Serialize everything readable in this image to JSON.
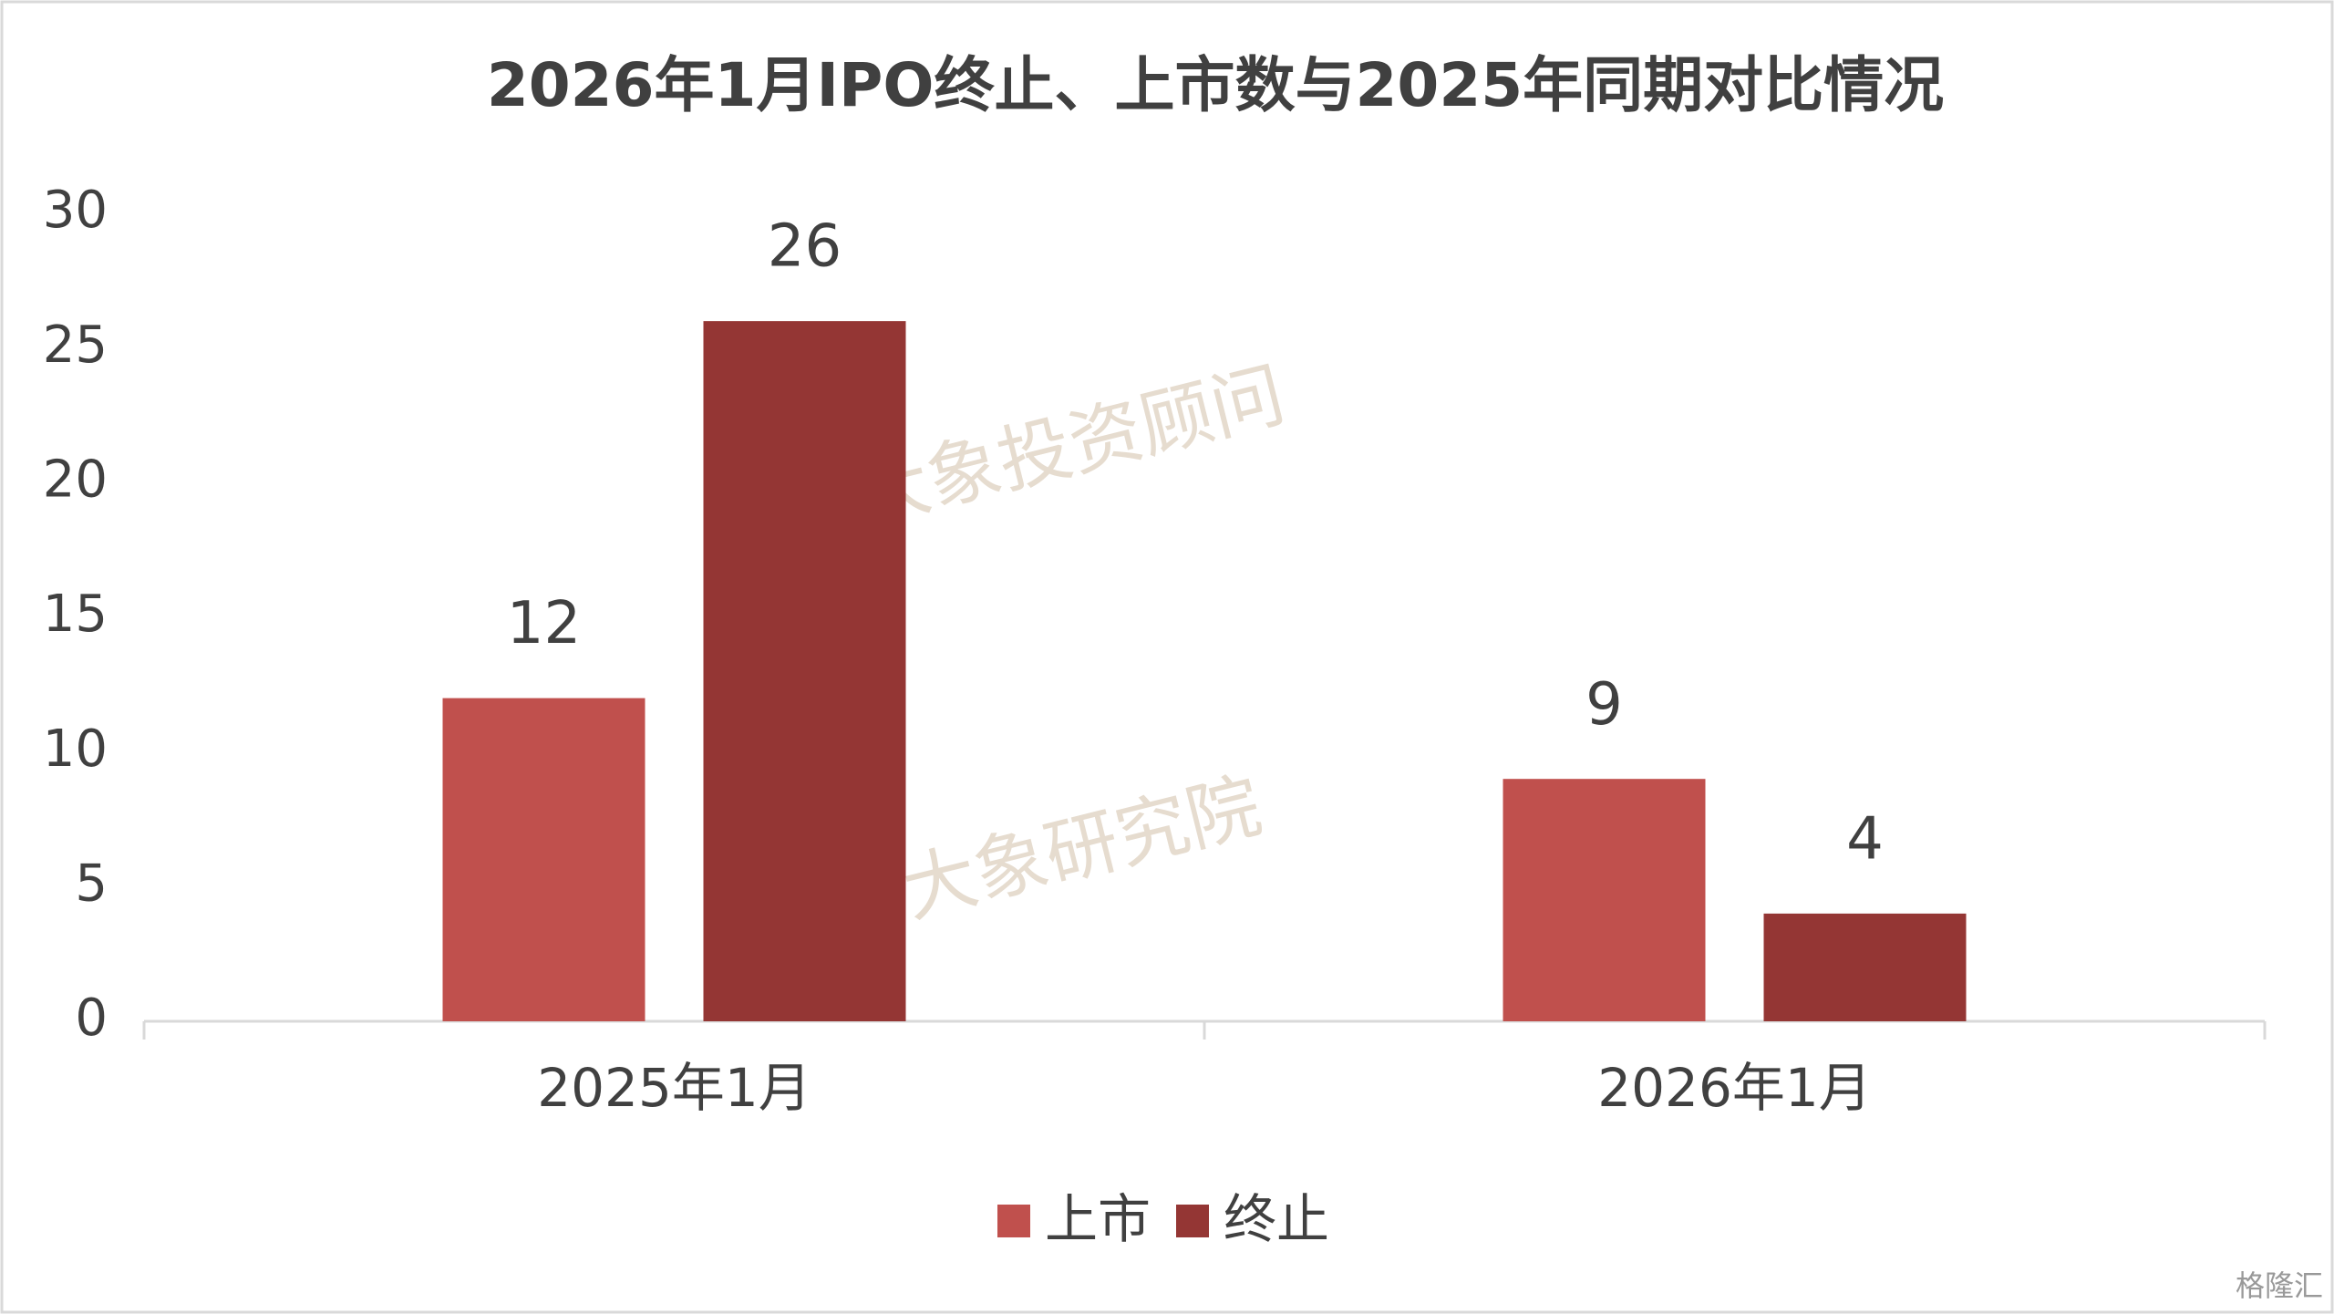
{
  "chart_data": {
    "type": "bar",
    "title": "2026年1月IPO终止、上市数与2025年同期对比情况",
    "categories": [
      "2025年1月",
      "2026年1月"
    ],
    "series": [
      {
        "name": "上市",
        "color": "#c0504d",
        "values": [
          12,
          9
        ]
      },
      {
        "name": "终止",
        "color": "#943634",
        "values": [
          26,
          4
        ]
      }
    ],
    "ylim": [
      0,
      30
    ],
    "yticks": [
      0,
      5,
      10,
      15,
      20,
      25,
      30
    ],
    "grid": false,
    "legend": "bottom",
    "watermarks": [
      "大象投资顾问",
      "大象研究院",
      "格隆汇"
    ]
  }
}
